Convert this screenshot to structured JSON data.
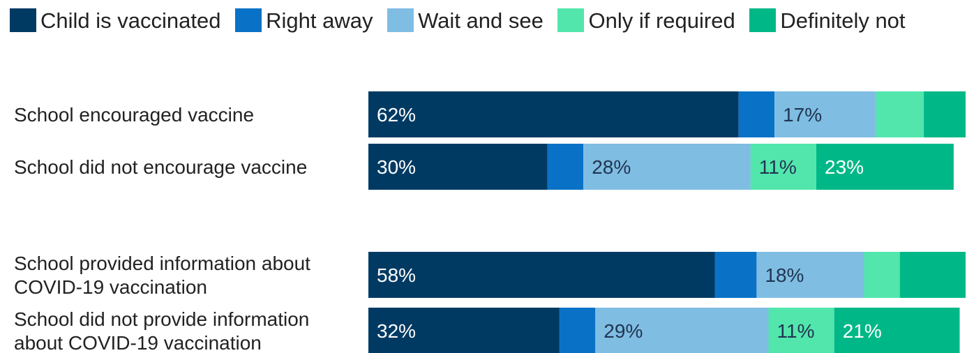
{
  "chart_data": {
    "type": "bar",
    "orientation": "horizontal",
    "stacked": true,
    "title": "",
    "xlabel": "",
    "ylabel": "",
    "xlim": [
      0,
      100
    ],
    "grid": false,
    "legend_position": "top",
    "categories": [
      "School encouraged vaccine",
      "School did not encourage vaccine",
      "School provided information about COVID-19 vaccination",
      "School did not provide information about COVID-19 vaccination"
    ],
    "groups": [
      [
        0,
        1
      ],
      [
        2,
        3
      ]
    ],
    "series": [
      {
        "name": "Child is vaccinated",
        "color": "#003a63",
        "label_color": "#ffffff",
        "values": [
          62,
          30,
          58,
          32
        ],
        "labels": [
          "62%",
          "30%",
          "58%",
          "32%"
        ]
      },
      {
        "name": "Right away",
        "color": "#0a72c6",
        "label_color": "#ffffff",
        "values": [
          6,
          6,
          7,
          6
        ],
        "labels": [
          "",
          "",
          "",
          ""
        ]
      },
      {
        "name": "Wait and see",
        "color": "#80bde3",
        "label_color": "#1f3550",
        "values": [
          17,
          28,
          18,
          29
        ],
        "labels": [
          "17%",
          "28%",
          "18%",
          "29%"
        ]
      },
      {
        "name": "Only if required",
        "color": "#52e6ad",
        "label_color": "#1f3550",
        "values": [
          8,
          11,
          6,
          11
        ],
        "labels": [
          "",
          "11%",
          "",
          "11%"
        ]
      },
      {
        "name": "Definitely not",
        "color": "#00b887",
        "label_color": "#ffffff",
        "values": [
          7,
          23,
          11,
          21
        ],
        "labels": [
          "",
          "23%",
          "",
          "21%"
        ]
      }
    ]
  }
}
